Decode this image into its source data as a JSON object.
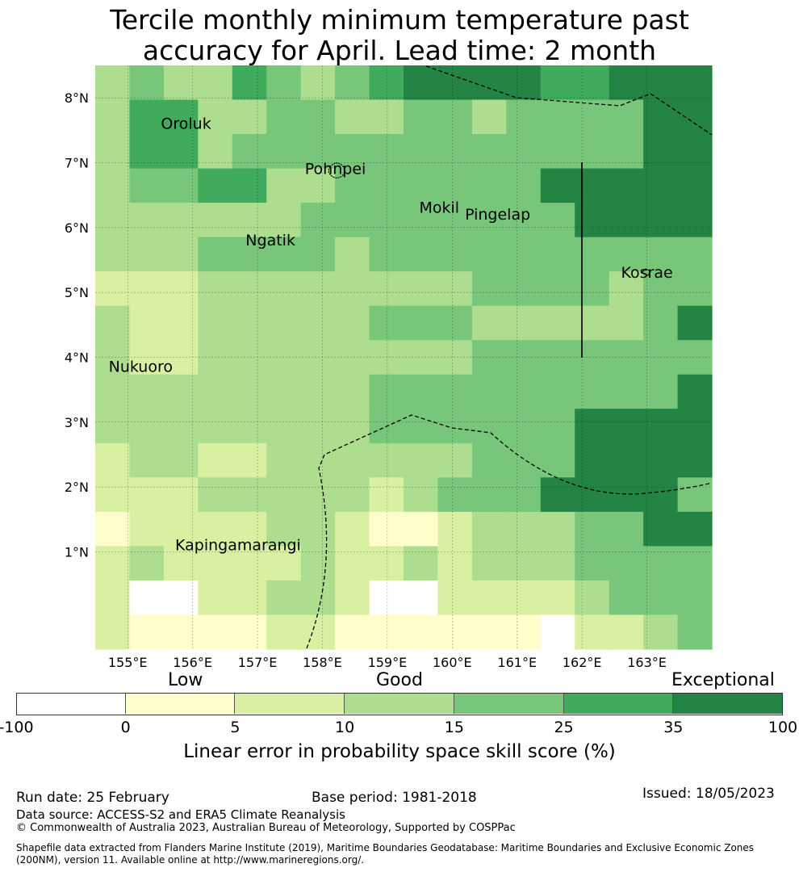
{
  "title": {
    "line1": "Tercile monthly minimum temperature past",
    "line2": "accuracy for April. Lead time: 2 month"
  },
  "map": {
    "lon_range": [
      154.5,
      164.0
    ],
    "lat_range": [
      -0.5,
      8.5
    ],
    "lat_ticks": [
      "8°N",
      "7°N",
      "6°N",
      "5°N",
      "4°N",
      "3°N",
      "2°N",
      "1°N"
    ],
    "lon_ticks": [
      "155°E",
      "156°E",
      "157°E",
      "158°E",
      "159°E",
      "160°E",
      "161°E",
      "162°E",
      "163°E"
    ],
    "places": [
      {
        "name": "Oroluk",
        "lon": 155.9,
        "lat": 7.6
      },
      {
        "name": "Pohnpei",
        "lon": 158.2,
        "lat": 6.9
      },
      {
        "name": "Mokil",
        "lon": 159.8,
        "lat": 6.3
      },
      {
        "name": "Pingelap",
        "lon": 160.7,
        "lat": 6.2
      },
      {
        "name": "Ngatik",
        "lon": 157.2,
        "lat": 5.8
      },
      {
        "name": "Kosrae",
        "lon": 163.0,
        "lat": 5.3
      },
      {
        "name": "Nukuoro",
        "lon": 155.2,
        "lat": 3.85
      },
      {
        "name": "Kapingamarangi",
        "lon": 156.7,
        "lat": 1.1
      }
    ],
    "grid_levels": [
      [
        3,
        4,
        3,
        3,
        5,
        4,
        3,
        4,
        5,
        6,
        6,
        6,
        6,
        5,
        5,
        6,
        6,
        6
      ],
      [
        3,
        5,
        5,
        3,
        3,
        4,
        4,
        3,
        3,
        4,
        4,
        3,
        4,
        4,
        4,
        4,
        6,
        6
      ],
      [
        3,
        5,
        5,
        3,
        4,
        4,
        4,
        4,
        4,
        4,
        4,
        4,
        4,
        4,
        4,
        4,
        6,
        6
      ],
      [
        3,
        4,
        4,
        5,
        5,
        3,
        3,
        4,
        4,
        4,
        4,
        4,
        4,
        6,
        6,
        6,
        6,
        6
      ],
      [
        3,
        3,
        3,
        3,
        3,
        3,
        4,
        4,
        4,
        4,
        4,
        4,
        4,
        4,
        6,
        6,
        6,
        6
      ],
      [
        3,
        3,
        3,
        4,
        4,
        4,
        4,
        3,
        4,
        4,
        4,
        4,
        4,
        4,
        4,
        4,
        4,
        4
      ],
      [
        2,
        2,
        2,
        3,
        3,
        3,
        3,
        3,
        3,
        3,
        3,
        4,
        4,
        4,
        4,
        3,
        4,
        4
      ],
      [
        3,
        2,
        2,
        3,
        3,
        3,
        3,
        3,
        4,
        4,
        4,
        3,
        3,
        3,
        3,
        3,
        4,
        6
      ],
      [
        3,
        2,
        2,
        3,
        3,
        3,
        3,
        3,
        3,
        3,
        3,
        4,
        4,
        4,
        4,
        4,
        4,
        4
      ],
      [
        3,
        3,
        3,
        3,
        3,
        3,
        3,
        3,
        4,
        4,
        4,
        4,
        4,
        4,
        4,
        4,
        4,
        6
      ],
      [
        3,
        3,
        3,
        3,
        3,
        3,
        3,
        3,
        4,
        4,
        4,
        4,
        4,
        4,
        6,
        6,
        6,
        6
      ],
      [
        2,
        3,
        3,
        2,
        2,
        3,
        3,
        3,
        3,
        3,
        3,
        4,
        4,
        4,
        6,
        6,
        6,
        6
      ],
      [
        2,
        2,
        2,
        3,
        3,
        3,
        3,
        3,
        2,
        3,
        4,
        4,
        4,
        6,
        6,
        6,
        6,
        4
      ],
      [
        1,
        2,
        2,
        2,
        2,
        3,
        3,
        2,
        1,
        1,
        2,
        3,
        3,
        3,
        4,
        4,
        6,
        6
      ],
      [
        2,
        3,
        2,
        2,
        2,
        2,
        3,
        2,
        2,
        3,
        2,
        3,
        3,
        3,
        4,
        4,
        4,
        4
      ],
      [
        2,
        0,
        0,
        2,
        2,
        3,
        3,
        2,
        0,
        0,
        2,
        2,
        2,
        2,
        3,
        4,
        4,
        4
      ],
      [
        2,
        1,
        1,
        1,
        1,
        2,
        2,
        1,
        1,
        1,
        1,
        1,
        1,
        0,
        2,
        2,
        3,
        4
      ]
    ]
  },
  "legend": {
    "categories": [
      "Low",
      "Good",
      "Exceptional"
    ],
    "colors": [
      "#ffffff",
      "#ffffcc",
      "#d9f0a3",
      "#addd8e",
      "#78c679",
      "#41ab5d",
      "#238443"
    ],
    "tick_labels": [
      "-100",
      "0",
      "5",
      "10",
      "15",
      "25",
      "35",
      "100"
    ],
    "axis_label": "Linear error in probability space skill score (%)"
  },
  "footer": {
    "run_date": "Run date: 25 February",
    "base_period": "Base period: 1981-2018",
    "issued": "Issued: 18/05/2023",
    "data_source": "Data source: ACCESS-S2 and ERA5 Climate Reanalysis",
    "copyright": "© Commonwealth of Australia 2023, Australian Bureau of Meteorology, Supported by COSPPac",
    "shapefile": "Shapefile data extracted from Flanders Marine Institute (2019), Maritime Boundaries Geodatabase: Maritime Boundaries and Exclusive Economic Zones (200NM), version 11. Available online at http://www.marineregions.org/."
  }
}
